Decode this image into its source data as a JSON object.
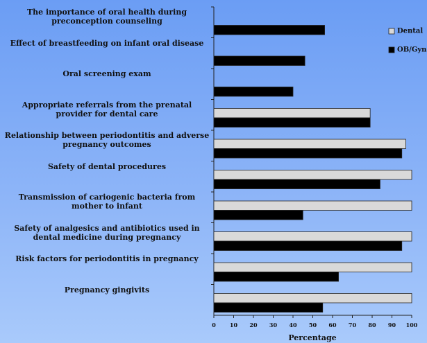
{
  "chart_data": {
    "type": "bar",
    "orientation": "horizontal",
    "categories": [
      "The importance of oral health during preconception counseling",
      "Effect of breastfeeding on infant oral disease",
      "Oral screening exam",
      "Appropriate referrals from the prenatal provider for dental care",
      "Relationship between periodontitis and adverse pregnancy outcomes",
      "Safety of dental procedures",
      "Transmission of cariogenic bacteria from mother to infant",
      "Safety of analgesics and antibiotics used in dental medicine during pregnancy",
      "Risk factors for periodontitis in pregnancy",
      "Pregnancy gingivits"
    ],
    "series": [
      {
        "name": "Dental",
        "color": "#d9d9d9",
        "values": [
          null,
          null,
          null,
          79,
          97,
          100,
          100,
          100,
          100,
          100
        ]
      },
      {
        "name": "OB/Gyn",
        "color": "#000000",
        "values": [
          56,
          46,
          40,
          79,
          95,
          84,
          45,
          95,
          63,
          55
        ]
      }
    ],
    "x_label": "Percentage",
    "xlim": [
      0,
      100
    ],
    "xticks": [
      0,
      10,
      20,
      30,
      40,
      50,
      60,
      70,
      80,
      90,
      100
    ],
    "legend": "right"
  }
}
